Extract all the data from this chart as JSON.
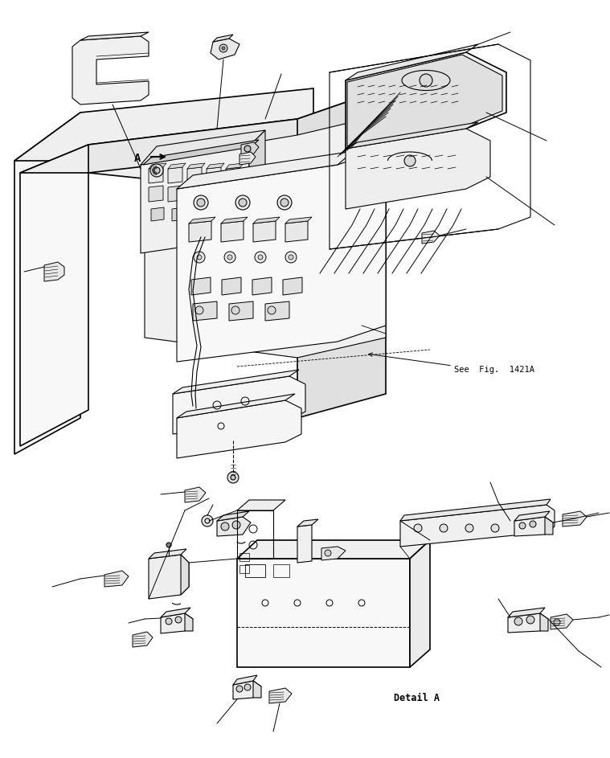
{
  "bg_color": "#ffffff",
  "lc": "#000000",
  "lw": 0.8,
  "tlw": 1.2,
  "fig_width": 7.59,
  "fig_height": 9.43,
  "dpi": 100,
  "see_fig_text": "See  Fig.  1421A",
  "detail_a_text": "Detail A",
  "label_a": "A"
}
